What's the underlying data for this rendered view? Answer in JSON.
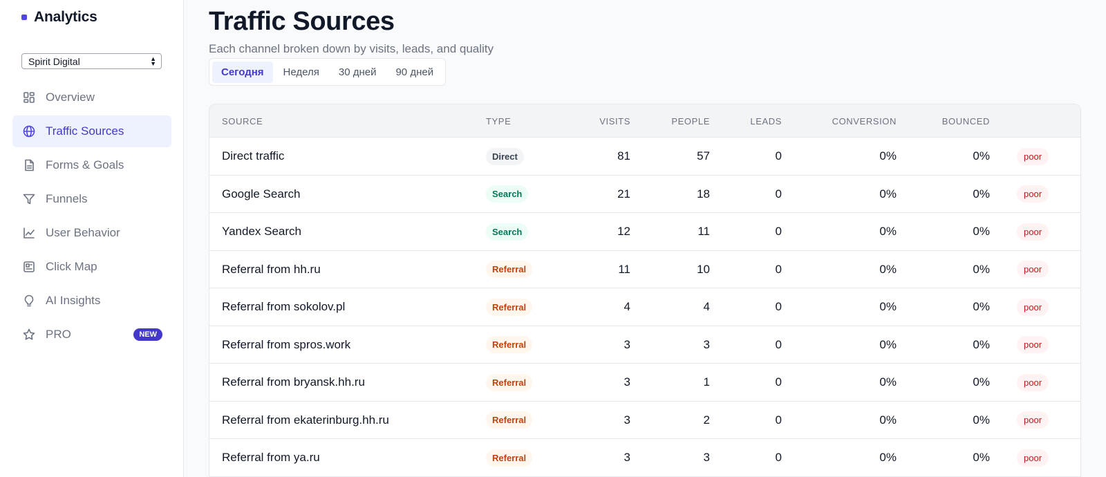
{
  "app": {
    "name": "Analytics",
    "brand_color": "#4f46e5"
  },
  "site_select": {
    "value": "Spirit Digital"
  },
  "nav": [
    {
      "label": "Overview",
      "icon": "grid-icon",
      "active": false
    },
    {
      "label": "Traffic Sources",
      "icon": "globe-icon",
      "active": true
    },
    {
      "label": "Forms & Goals",
      "icon": "document-icon",
      "active": false
    },
    {
      "label": "Funnels",
      "icon": "funnel-icon",
      "active": false
    },
    {
      "label": "User Behavior",
      "icon": "line-chart-icon",
      "active": false
    },
    {
      "label": "Click Map",
      "icon": "click-map-icon",
      "active": false
    },
    {
      "label": "AI Insights",
      "icon": "lightbulb-icon",
      "active": false
    },
    {
      "label": "PRO",
      "icon": "star-icon",
      "active": false,
      "badge": "NEW"
    }
  ],
  "header": {
    "title": "Traffic Sources",
    "subtitle": "Each channel broken down by visits, leads, and quality"
  },
  "periods": [
    {
      "label": "Сегодня",
      "active": true
    },
    {
      "label": "Неделя",
      "active": false
    },
    {
      "label": "30 дней",
      "active": false
    },
    {
      "label": "90 дней",
      "active": false
    }
  ],
  "table": {
    "columns": [
      "SOURCE",
      "TYPE",
      "VISITS",
      "PEOPLE",
      "LEADS",
      "CONVERSION",
      "BOUNCED"
    ],
    "rows": [
      {
        "source": "Direct traffic",
        "type": "Direct",
        "visits": "81",
        "people": "57",
        "leads": "0",
        "conversion": "0%",
        "bounced": "0%",
        "quality": "poor"
      },
      {
        "source": "Google Search",
        "type": "Search",
        "visits": "21",
        "people": "18",
        "leads": "0",
        "conversion": "0%",
        "bounced": "0%",
        "quality": "poor"
      },
      {
        "source": "Yandex Search",
        "type": "Search",
        "visits": "12",
        "people": "11",
        "leads": "0",
        "conversion": "0%",
        "bounced": "0%",
        "quality": "poor"
      },
      {
        "source": "Referral from hh.ru",
        "type": "Referral",
        "visits": "11",
        "people": "10",
        "leads": "0",
        "conversion": "0%",
        "bounced": "0%",
        "quality": "poor"
      },
      {
        "source": "Referral from sokolov.pl",
        "type": "Referral",
        "visits": "4",
        "people": "4",
        "leads": "0",
        "conversion": "0%",
        "bounced": "0%",
        "quality": "poor"
      },
      {
        "source": "Referral from spros.work",
        "type": "Referral",
        "visits": "3",
        "people": "3",
        "leads": "0",
        "conversion": "0%",
        "bounced": "0%",
        "quality": "poor"
      },
      {
        "source": "Referral from bryansk.hh.ru",
        "type": "Referral",
        "visits": "3",
        "people": "1",
        "leads": "0",
        "conversion": "0%",
        "bounced": "0%",
        "quality": "poor"
      },
      {
        "source": "Referral from ekaterinburg.hh.ru",
        "type": "Referral",
        "visits": "3",
        "people": "2",
        "leads": "0",
        "conversion": "0%",
        "bounced": "0%",
        "quality": "poor"
      },
      {
        "source": "Referral from ya.ru",
        "type": "Referral",
        "visits": "3",
        "people": "3",
        "leads": "0",
        "conversion": "0%",
        "bounced": "0%",
        "quality": "poor"
      }
    ]
  }
}
